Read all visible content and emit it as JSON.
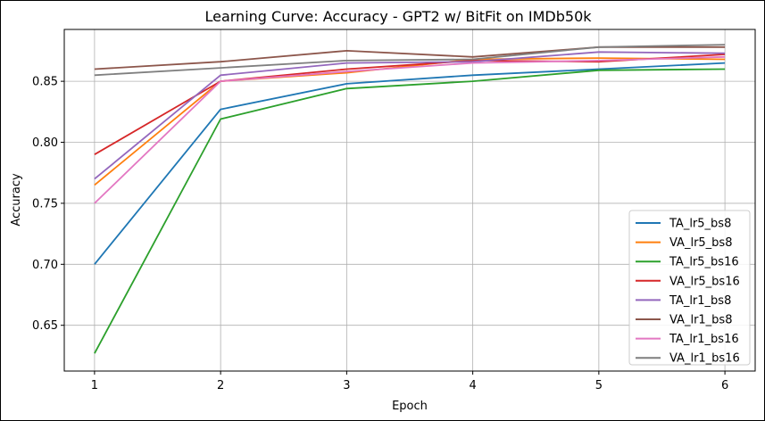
{
  "chart_data": {
    "type": "line",
    "title": "Learning Curve: Accuracy - GPT2 w/ BitFit on IMDb50k",
    "xlabel": "Epoch",
    "ylabel": "Accuracy",
    "x": [
      1,
      2,
      3,
      4,
      5,
      6
    ],
    "xlim": [
      0.76,
      6.24
    ],
    "ylim": [
      0.6125,
      0.8925
    ],
    "xticks": [
      "1",
      "2",
      "3",
      "4",
      "5",
      "6"
    ],
    "yticks": [
      "0.65",
      "0.70",
      "0.75",
      "0.80",
      "0.85"
    ],
    "grid": true,
    "legend_position": "lower-right",
    "series": [
      {
        "name": "TA_lr5_bs8",
        "color": "#1f77b4",
        "values": [
          0.7,
          0.827,
          0.848,
          0.855,
          0.86,
          0.865
        ]
      },
      {
        "name": "VA_lr5_bs8",
        "color": "#ff7f0e",
        "values": [
          0.765,
          0.85,
          0.857,
          0.868,
          0.869,
          0.868
        ]
      },
      {
        "name": "TA_lr5_bs16",
        "color": "#2ca02c",
        "values": [
          0.627,
          0.819,
          0.844,
          0.85,
          0.859,
          0.86
        ]
      },
      {
        "name": "VA_lr5_bs16",
        "color": "#d62728",
        "values": [
          0.79,
          0.85,
          0.86,
          0.867,
          0.866,
          0.872
        ]
      },
      {
        "name": "TA_lr1_bs8",
        "color": "#9467bd",
        "values": [
          0.77,
          0.855,
          0.865,
          0.866,
          0.874,
          0.873
        ]
      },
      {
        "name": "VA_lr1_bs8",
        "color": "#8c564b",
        "values": [
          0.86,
          0.866,
          0.875,
          0.87,
          0.878,
          0.878
        ]
      },
      {
        "name": "TA_lr1_bs16",
        "color": "#e377c2",
        "values": [
          0.75,
          0.85,
          0.858,
          0.865,
          0.867,
          0.87
        ]
      },
      {
        "name": "VA_lr1_bs16",
        "color": "#7f7f7f",
        "values": [
          0.855,
          0.861,
          0.867,
          0.868,
          0.878,
          0.88
        ]
      }
    ]
  }
}
